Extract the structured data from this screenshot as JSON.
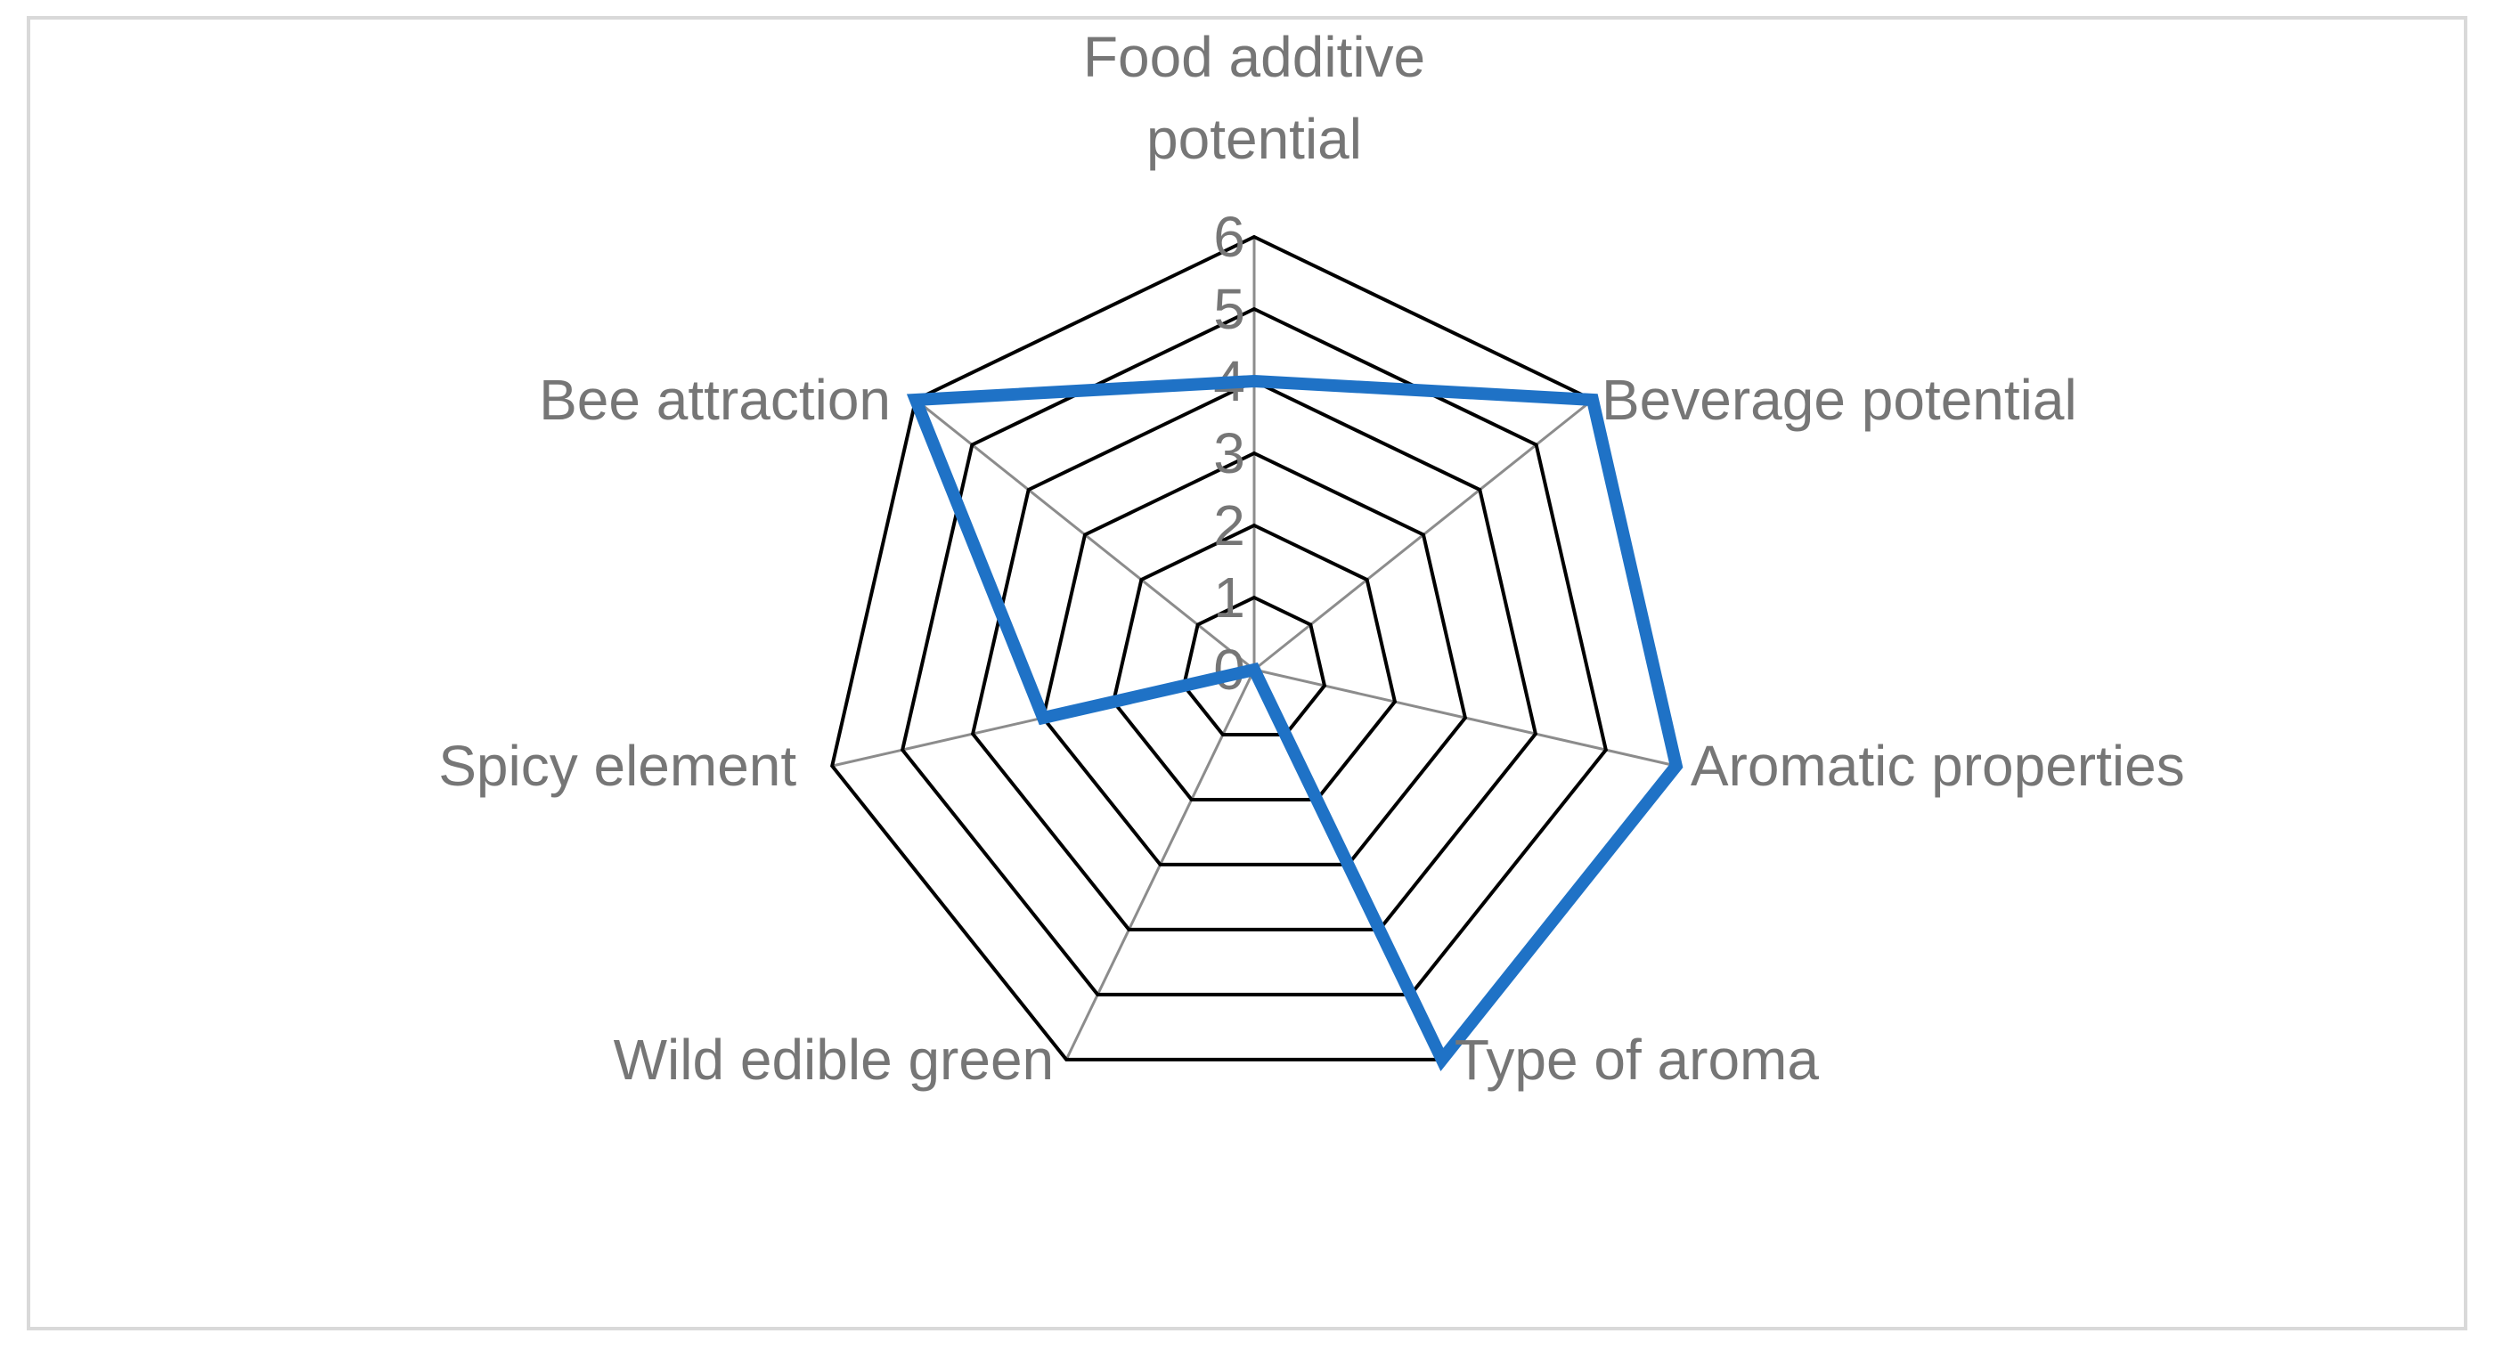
{
  "chart_data": {
    "type": "radar",
    "categories": [
      [
        "Food additive",
        "potential"
      ],
      [
        "Beverage potential"
      ],
      [
        "Aromatic properties"
      ],
      [
        "Type of aroma"
      ],
      [
        "Wild edible green"
      ],
      [
        "Spicy element"
      ],
      [
        "Bee attraction"
      ]
    ],
    "series": [
      {
        "values": [
          4,
          6,
          6,
          6,
          0,
          3,
          6
        ],
        "color": "#1f72c6"
      }
    ],
    "rmin": 0,
    "rmax": 6,
    "ticks": [
      "0",
      "1",
      "2",
      "3",
      "4",
      "5",
      "6"
    ],
    "grid": true,
    "legend": "none"
  }
}
